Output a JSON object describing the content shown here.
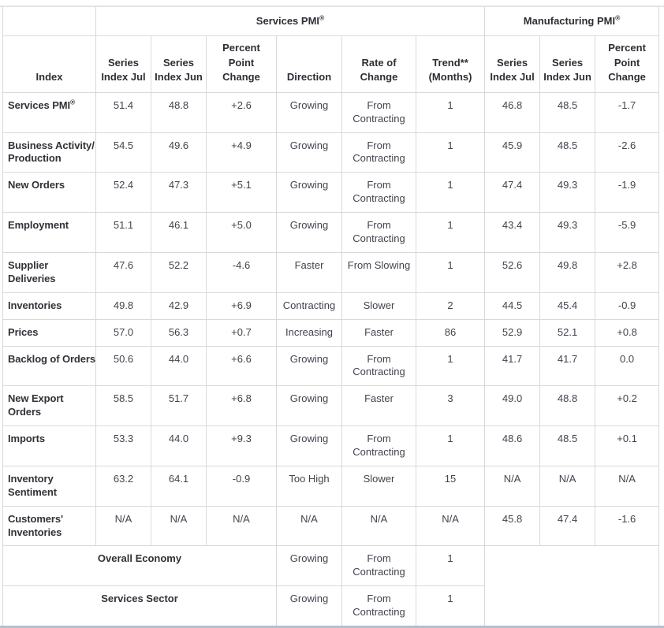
{
  "colors": {
    "cell_border": "#d9d9d9",
    "top_rule": "#e0e3e7",
    "bottom_rule": "#b3c0cc",
    "header_text": "#2e2d34",
    "label_text": "#323138",
    "data_text": "#45424e",
    "background": "#ffffff"
  },
  "chart_data": {
    "type": "table",
    "groups": [
      {
        "label": "Services PMI",
        "sup": "®"
      },
      {
        "label": "Manufacturing PMI",
        "sup": "®"
      }
    ],
    "columns": [
      "Index",
      "Series\nIndex Jul",
      "Series\nIndex Jun",
      "Percent\nPoint\nChange",
      "Direction",
      "Rate of\nChange",
      "Trend**\n(Months)",
      "Series\nIndex Jul",
      "Series\nIndex Jun",
      "Percent\nPoint\nChange"
    ],
    "rows": [
      {
        "label": "Services PMI",
        "sup": "®",
        "cells": [
          "51.4",
          "48.8",
          "+2.6",
          "Growing",
          "From\nContracting",
          "1",
          "46.8",
          "48.5",
          "-1.7"
        ]
      },
      {
        "label": "Business Activity/\nProduction",
        "cells": [
          "54.5",
          "49.6",
          "+4.9",
          "Growing",
          "From\nContracting",
          "1",
          "45.9",
          "48.5",
          "-2.6"
        ]
      },
      {
        "label": "New Orders",
        "cells": [
          "52.4",
          "47.3",
          "+5.1",
          "Growing",
          "From\nContracting",
          "1",
          "47.4",
          "49.3",
          "-1.9"
        ]
      },
      {
        "label": "Employment",
        "cells": [
          "51.1",
          "46.1",
          "+5.0",
          "Growing",
          "From\nContracting",
          "1",
          "43.4",
          "49.3",
          "-5.9"
        ]
      },
      {
        "label": "Supplier\nDeliveries",
        "cells": [
          "47.6",
          "52.2",
          "-4.6",
          "Faster",
          "From Slowing",
          "1",
          "52.6",
          "49.8",
          "+2.8"
        ]
      },
      {
        "label": "Inventories",
        "cells": [
          "49.8",
          "42.9",
          "+6.9",
          "Contracting",
          "Slower",
          "2",
          "44.5",
          "45.4",
          "-0.9"
        ]
      },
      {
        "label": "Prices",
        "cells": [
          "57.0",
          "56.3",
          "+0.7",
          "Increasing",
          "Faster",
          "86",
          "52.9",
          "52.1",
          "+0.8"
        ]
      },
      {
        "label": "Backlog of Orders",
        "cells": [
          "50.6",
          "44.0",
          "+6.6",
          "Growing",
          "From\nContracting",
          "1",
          "41.7",
          "41.7",
          "0.0"
        ]
      },
      {
        "label": "New Export\nOrders",
        "cells": [
          "58.5",
          "51.7",
          "+6.8",
          "Growing",
          "Faster",
          "3",
          "49.0",
          "48.8",
          "+0.2"
        ]
      },
      {
        "label": "Imports",
        "cells": [
          "53.3",
          "44.0",
          "+9.3",
          "Growing",
          "From\nContracting",
          "1",
          "48.6",
          "48.5",
          "+0.1"
        ]
      },
      {
        "label": "Inventory\nSentiment",
        "cells": [
          "63.2",
          "64.1",
          "-0.9",
          "Too High",
          "Slower",
          "15",
          "N/A",
          "N/A",
          "N/A"
        ]
      },
      {
        "label": "Customers'\nInventories",
        "cells": [
          "N/A",
          "N/A",
          "N/A",
          "N/A",
          "N/A",
          "N/A",
          "45.8",
          "47.4",
          "-1.6"
        ]
      }
    ],
    "summary_rows": [
      {
        "label": "Overall Economy",
        "direction": "Growing",
        "rate": "From\nContracting",
        "trend": "1"
      },
      {
        "label": "Services Sector",
        "direction": "Growing",
        "rate": "From\nContracting",
        "trend": "1"
      }
    ]
  }
}
